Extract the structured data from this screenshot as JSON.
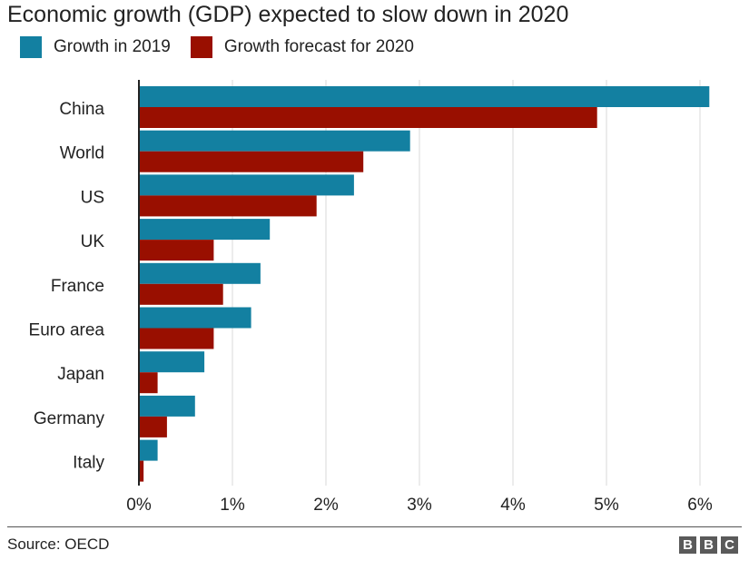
{
  "chart_data": {
    "type": "bar",
    "orientation": "horizontal",
    "title": "Economic growth (GDP) expected to slow down in 2020",
    "categories": [
      "China",
      "World",
      "US",
      "UK",
      "France",
      "Euro area",
      "Japan",
      "Germany",
      "Italy"
    ],
    "series": [
      {
        "name": "Growth in 2019",
        "color": "#1380a1",
        "values": [
          6.1,
          2.9,
          2.3,
          1.4,
          1.3,
          1.2,
          0.7,
          0.6,
          0.2
        ]
      },
      {
        "name": "Growth forecast for 2020",
        "color": "#990f00",
        "values": [
          4.9,
          2.4,
          1.9,
          0.8,
          0.9,
          0.8,
          0.2,
          0.3,
          0.05
        ]
      }
    ],
    "xlim": [
      0,
      6
    ],
    "xticks": [
      0,
      1,
      2,
      3,
      4,
      5,
      6
    ],
    "xtick_labels": [
      "0%",
      "1%",
      "2%",
      "3%",
      "4%",
      "5%",
      "6%"
    ],
    "grid": true,
    "legend": "top-left"
  },
  "footer": {
    "source": "Source: OECD",
    "logo": [
      "B",
      "B",
      "C"
    ]
  }
}
